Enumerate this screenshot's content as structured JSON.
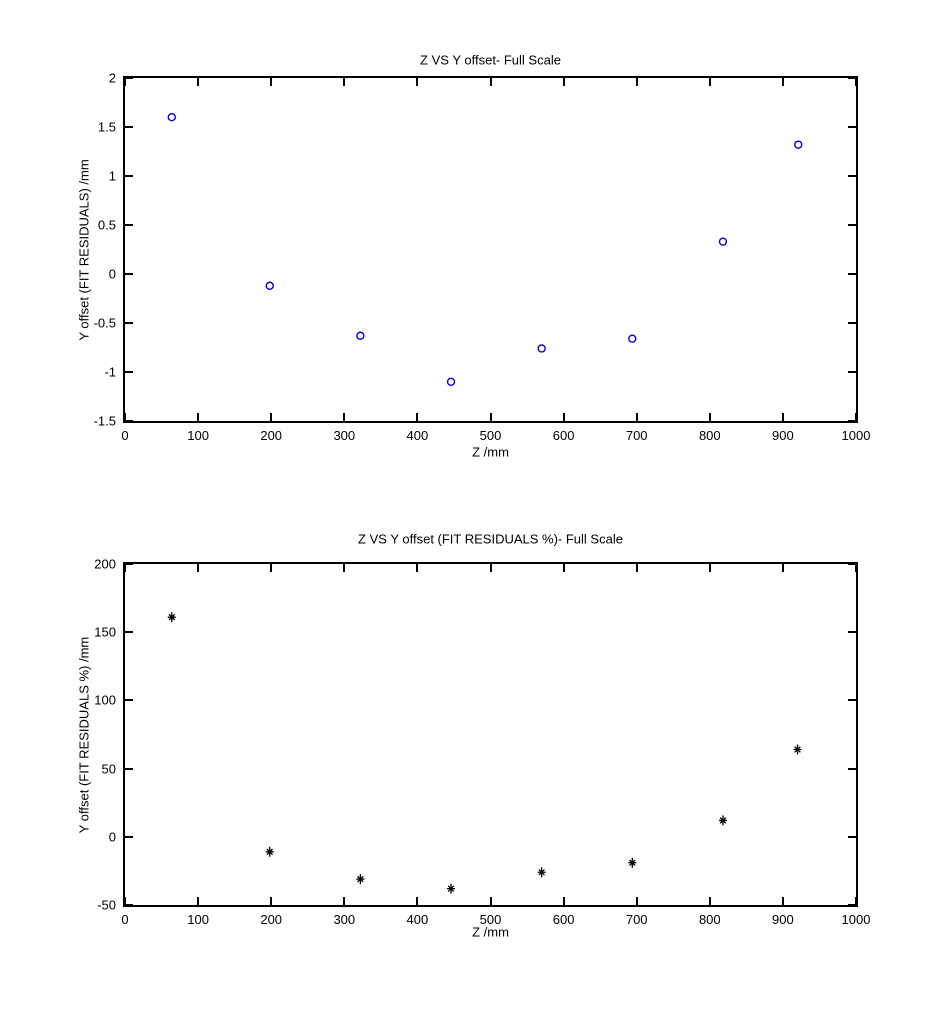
{
  "figure": {
    "background": "#ffffff",
    "axis_color": "#000000",
    "text_color": "#000000"
  },
  "chart_data": [
    {
      "type": "scatter",
      "title": "Z VS Y offset- Full Scale",
      "xlabel": "Z /mm",
      "ylabel": "Y offset (FIT RESIDUALS) /mm",
      "xlim": [
        0,
        1000
      ],
      "ylim": [
        -1.5,
        2
      ],
      "xtick_values": [
        0,
        100,
        200,
        300,
        400,
        500,
        600,
        700,
        800,
        900,
        1000
      ],
      "xtick_labels": [
        "0",
        "100",
        "200",
        "300",
        "400",
        "500",
        "600",
        "700",
        "800",
        "900",
        "1000"
      ],
      "ytick_values": [
        -1.5,
        -1,
        -0.5,
        0,
        0.5,
        1,
        1.5,
        2
      ],
      "ytick_labels": [
        "-1.5",
        "-1",
        "-0.5",
        "0",
        "0.5",
        "1",
        "1.5",
        "2"
      ],
      "grid": false,
      "legend": null,
      "marker": {
        "shape": "circle",
        "color": "#0000C8"
      },
      "series": [
        {
          "name": "Y offset fit residuals",
          "x": [
            64,
            198,
            322,
            446,
            570,
            694,
            818,
            921
          ],
          "y": [
            1.6,
            -0.12,
            -0.63,
            -1.1,
            -0.76,
            -0.66,
            0.33,
            1.32
          ]
        }
      ]
    },
    {
      "type": "scatter",
      "title": "Z VS Y offset (FIT RESIDUALS %)- Full Scale",
      "xlabel": "Z /mm",
      "ylabel": "Y offset (FIT RESIDUALS %) /mm",
      "xlim": [
        0,
        1000
      ],
      "ylim": [
        -50,
        200
      ],
      "xtick_values": [
        0,
        100,
        200,
        300,
        400,
        500,
        600,
        700,
        800,
        900,
        1000
      ],
      "xtick_labels": [
        "0",
        "100",
        "200",
        "300",
        "400",
        "500",
        "600",
        "700",
        "800",
        "900",
        "1000"
      ],
      "ytick_values": [
        -50,
        0,
        50,
        100,
        150,
        200
      ],
      "ytick_labels": [
        "-50",
        "0",
        "50",
        "100",
        "150",
        "200"
      ],
      "grid": false,
      "legend": null,
      "marker": {
        "shape": "asterisk",
        "color": "#000000"
      },
      "series": [
        {
          "name": "Y offset fit residuals percent",
          "x": [
            64,
            198,
            322,
            446,
            570,
            694,
            818,
            920
          ],
          "y": [
            161,
            -11,
            -31,
            -38,
            -26,
            -19,
            12,
            64
          ]
        }
      ]
    }
  ]
}
